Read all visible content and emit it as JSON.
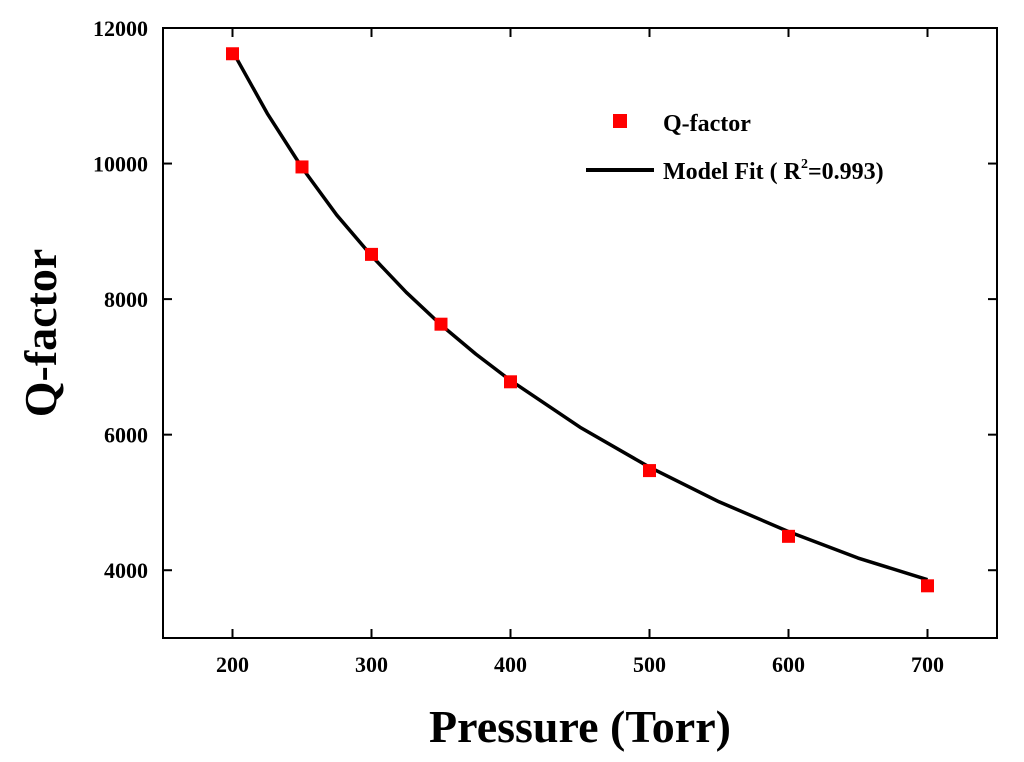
{
  "chart_data": {
    "type": "scatter",
    "xlabel": "Pressure (Torr)",
    "ylabel": "Q-factor",
    "xlim": [
      150,
      750
    ],
    "ylim": [
      3000,
      12000
    ],
    "xticks": [
      200,
      300,
      400,
      500,
      600,
      700
    ],
    "yticks": [
      4000,
      6000,
      8000,
      10000,
      12000
    ],
    "xtick_labels": [
      "200",
      "300",
      "400",
      "500",
      "600",
      "700"
    ],
    "ytick_labels": [
      "4000",
      "6000",
      "8000",
      "10000",
      "12000"
    ],
    "grid": false,
    "legend_position": "top-right",
    "series": [
      {
        "name": "Q-factor",
        "kind": "scatter",
        "marker": "square",
        "color": "#ff0000",
        "x": [
          200,
          250,
          300,
          350,
          400,
          500,
          600,
          700
        ],
        "y": [
          11620,
          9950,
          8660,
          7630,
          6780,
          5470,
          4500,
          3770
        ]
      },
      {
        "name": "Model Fit",
        "kind": "line",
        "color": "#000000",
        "x": [
          200,
          225,
          250,
          275,
          300,
          325,
          350,
          375,
          400,
          450,
          500,
          550,
          600,
          650,
          700
        ],
        "y": [
          11660,
          10740,
          9940,
          9240,
          8640,
          8100,
          7620,
          7190,
          6800,
          6110,
          5520,
          5010,
          4570,
          4180,
          3860
        ]
      }
    ],
    "legend": {
      "entries": [
        {
          "label": "Q-factor",
          "marker": "square",
          "color": "#ff0000"
        },
        {
          "label_prefix": "Model Fit ( R",
          "label_sup": "2",
          "label_suffix": "=0.993)",
          "marker": "line",
          "color": "#000000"
        }
      ]
    }
  }
}
